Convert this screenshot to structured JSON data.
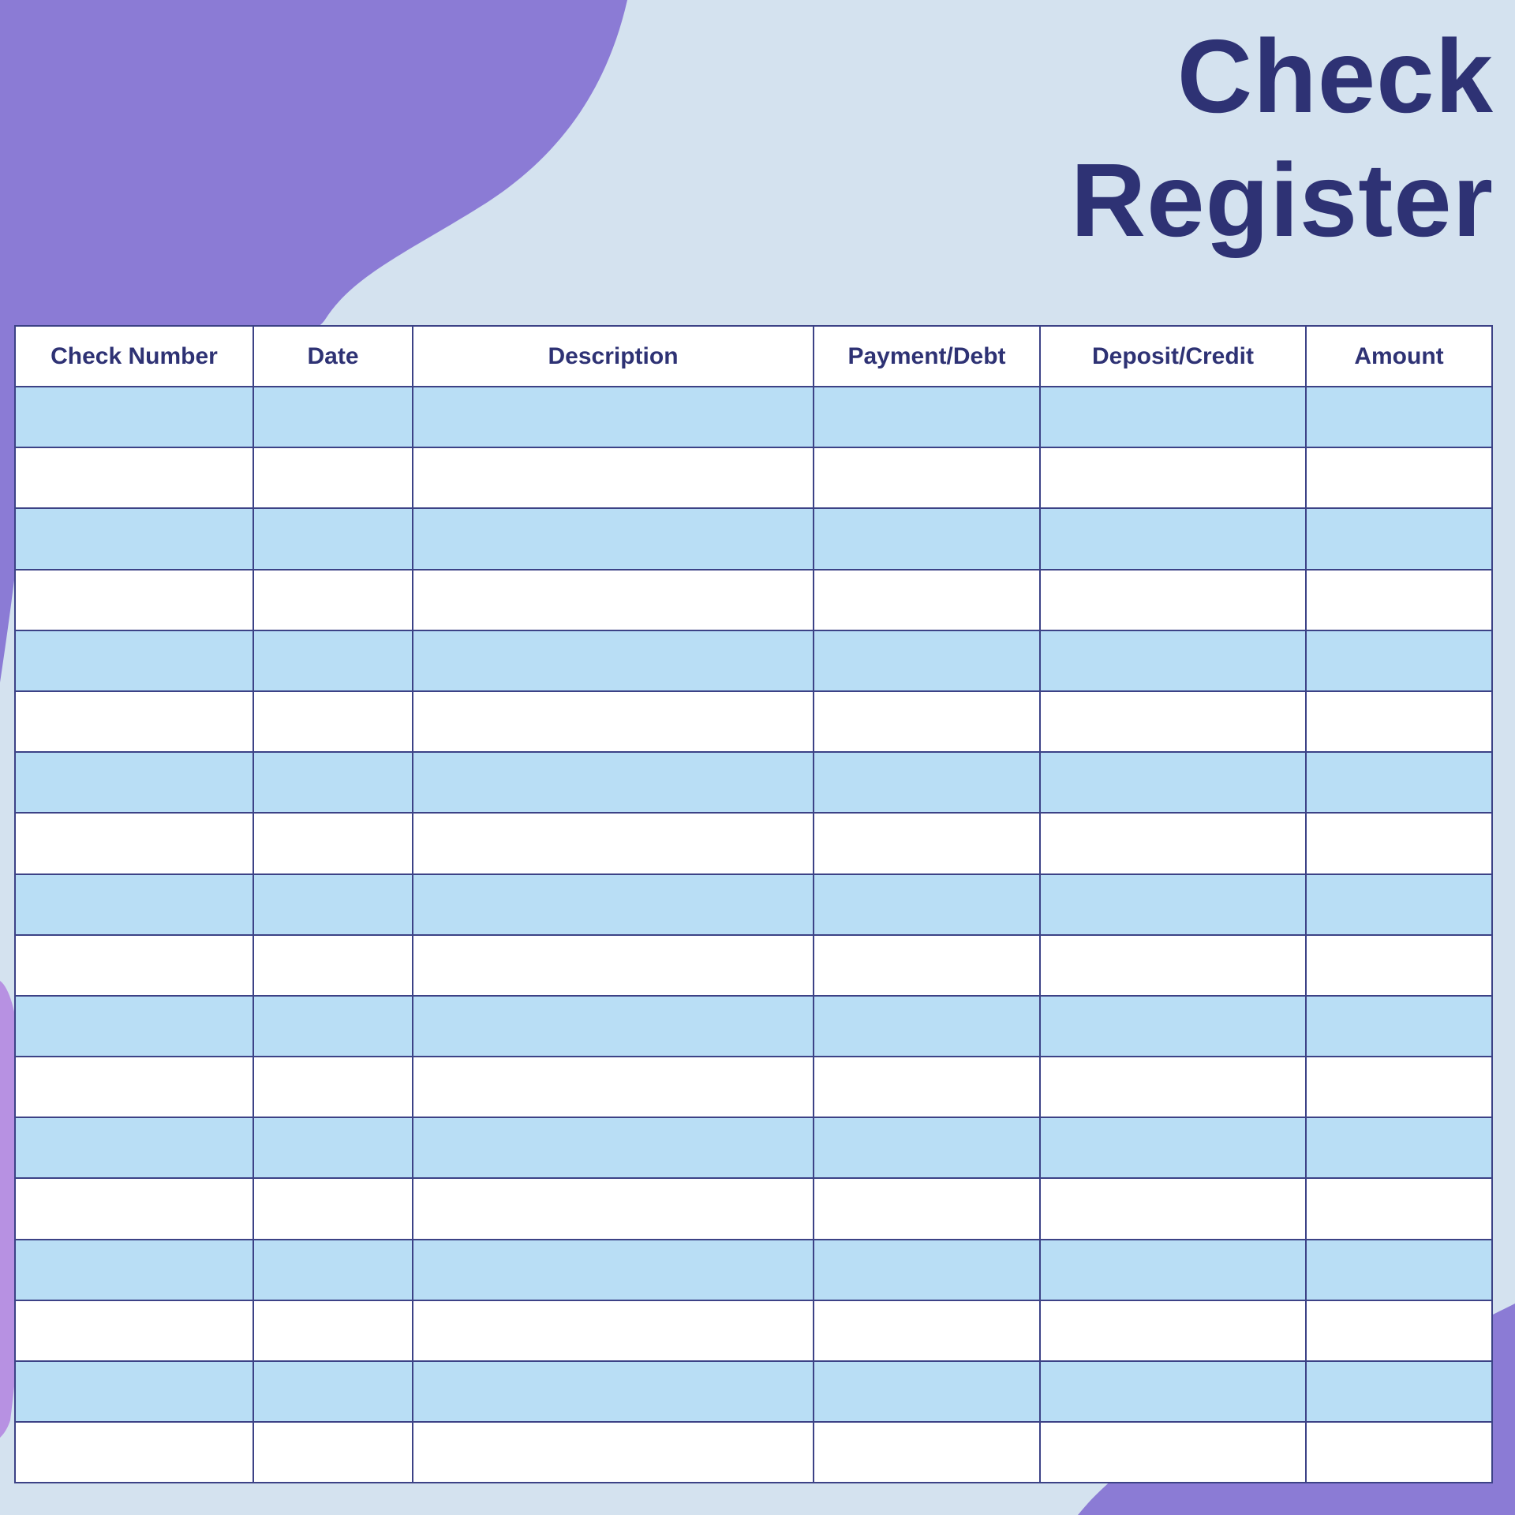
{
  "title": {
    "line1": "Check",
    "line2": "Register"
  },
  "table": {
    "columns": [
      "Check Number",
      "Date",
      "Description",
      "Payment/Debt",
      "Deposit/Credit",
      "Amount"
    ],
    "rows": [
      [
        "",
        "",
        "",
        "",
        "",
        ""
      ],
      [
        "",
        "",
        "",
        "",
        "",
        ""
      ],
      [
        "",
        "",
        "",
        "",
        "",
        ""
      ],
      [
        "",
        "",
        "",
        "",
        "",
        ""
      ],
      [
        "",
        "",
        "",
        "",
        "",
        ""
      ],
      [
        "",
        "",
        "",
        "",
        "",
        ""
      ],
      [
        "",
        "",
        "",
        "",
        "",
        ""
      ],
      [
        "",
        "",
        "",
        "",
        "",
        ""
      ],
      [
        "",
        "",
        "",
        "",
        "",
        ""
      ],
      [
        "",
        "",
        "",
        "",
        "",
        ""
      ],
      [
        "",
        "",
        "",
        "",
        "",
        ""
      ],
      [
        "",
        "",
        "",
        "",
        "",
        ""
      ],
      [
        "",
        "",
        "",
        "",
        "",
        ""
      ],
      [
        "",
        "",
        "",
        "",
        "",
        ""
      ],
      [
        "",
        "",
        "",
        "",
        "",
        ""
      ],
      [
        "",
        "",
        "",
        "",
        "",
        ""
      ],
      [
        "",
        "",
        "",
        "",
        "",
        ""
      ],
      [
        "",
        "",
        "",
        "",
        "",
        ""
      ]
    ]
  },
  "colors": {
    "background": "#d4e2ef",
    "row_blue": "#b9def5",
    "row_white": "#ffffff",
    "header_bg": "#ffffff",
    "navy": "#2e3274",
    "border": "#3c4286",
    "blob_purple": "#8b7bd5",
    "blob_light_purple": "#b791e2"
  }
}
